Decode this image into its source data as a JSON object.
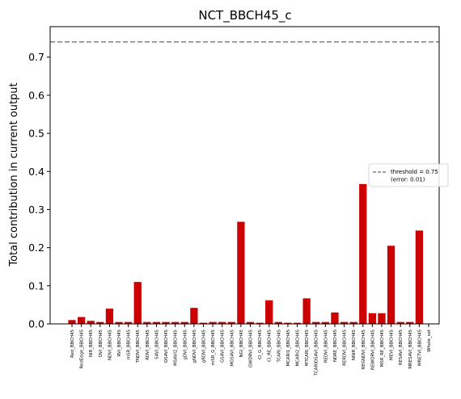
{
  "chart_data": {
    "type": "bar",
    "title": "NCT_BBCH45_c",
    "xlabel": "",
    "ylabel": "Total contribution in current output",
    "ylim": [
      0,
      0.78
    ],
    "yticks": [
      0.0,
      0.1,
      0.2,
      0.3,
      0.4,
      0.5,
      0.6,
      0.7
    ],
    "ytick_labels": [
      "0.0",
      "0.1",
      "0.2",
      "0.3",
      "0.4",
      "0.5",
      "0.6",
      "0.7"
    ],
    "bar_color": "#cc0000",
    "categories": [
      "Red_BBCH45",
      "RedEdge_BBCH45",
      "NIR_BBCH45",
      "DVI_BBCH45",
      "NDVI_BBCH45",
      "RVI_BBCH45",
      "mSR_BBCH45",
      "TNDVI_BBCH45",
      "RDVI_BBCH45",
      "SAVI_BBCH45",
      "OSAVI_BBCH45",
      "MSAVI2_BBCH45",
      "gDVI_BBCH45",
      "gNDVI_BBCH45",
      "gRDVI_BBCH45",
      "mSR_G_BBCH45",
      "GSAVI_BBCH45",
      "MGSAVI_BBCH45",
      "NGI_BBCH45",
      "GWDRVI_BBCH45",
      "CI_G_BBCH45",
      "CI_RE_BBCH45",
      "TCARI_BBCH45",
      "MCARI1_BBCH45",
      "MCARI2_BBCH45",
      "MTCARI_BBCH45",
      "TCARIOSAVI_BBCH45",
      "REDVI_BBCH45",
      "NDRE_BBCH45",
      "RERDVI_BBCH45",
      "NNIR_BBCH45",
      "REGNDVI_BBCH45",
      "REWDRVI_BBCH45",
      "MSR_RE_BBCH45",
      "MEVI_BBCH45",
      "RESAVI_BBCH45",
      "MRESAVI_BBCH45",
      "MRETVI_BBCH45",
      "Whole_set"
    ],
    "values": [
      0.01,
      0.018,
      0.008,
      0.005,
      0.04,
      0.005,
      0.005,
      0.11,
      0.005,
      0.005,
      0.005,
      0.005,
      0.005,
      0.042,
      0.003,
      0.005,
      0.005,
      0.005,
      0.268,
      0.005,
      0.003,
      0.062,
      0.005,
      0.003,
      0.003,
      0.067,
      0.005,
      0.005,
      0.03,
      0.005,
      0.005,
      0.367,
      0.028,
      0.028,
      0.205,
      0.005,
      0.005,
      0.245,
      0.0
    ],
    "threshold": {
      "value": 0.74,
      "color": "#808080",
      "style": "dashed",
      "legend_line1": "threshold = 0.75",
      "legend_line2": "(error: 0.01)"
    },
    "legend_position": "center-right",
    "grid": false
  }
}
